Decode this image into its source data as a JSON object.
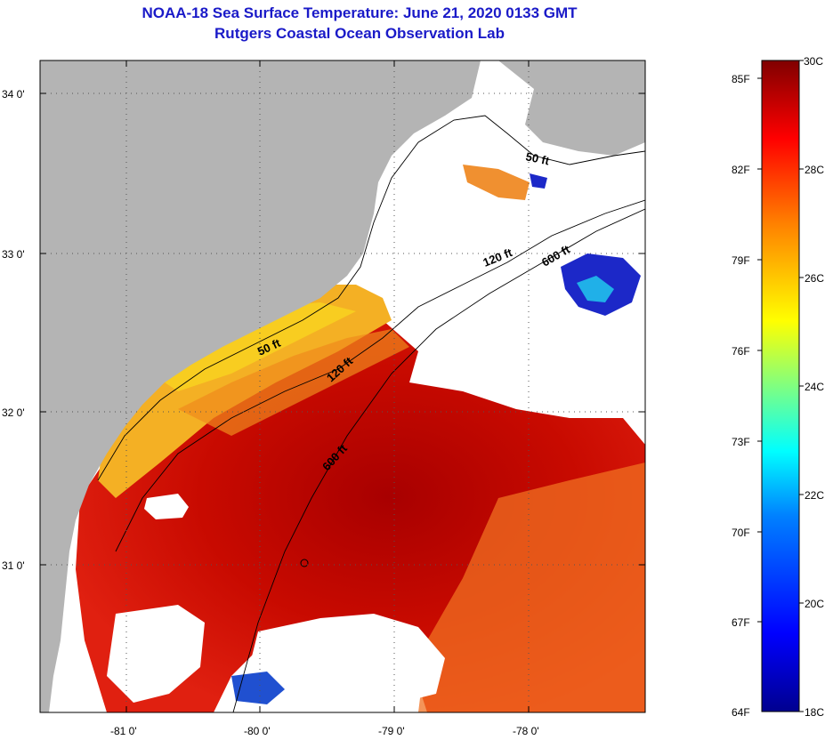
{
  "header": {
    "title": "NOAA-18 Sea Surface Temperature:  June 21, 2020 0133 GMT",
    "subtitle": "Rutgers Coastal Ocean Observation Lab"
  },
  "map": {
    "lat_labels": [
      "34 0'",
      "33 0'",
      "32 0'",
      "31 0'"
    ],
    "lon_labels": [
      "-81 0'",
      "-80 0'",
      "-79 0'",
      "-78 0'"
    ],
    "depth_labels": [
      "50 ft",
      "120 ft",
      "600 ft",
      "50 ft",
      "120 ft",
      "600 ft"
    ],
    "colors": {
      "land": "#b4b4b4",
      "cloud": "#ffffff",
      "warm_dark": "#a80000",
      "warm": "#e02010",
      "orange": "#f07818",
      "yellow": "#f8d020",
      "cold": "#1c28c8"
    }
  },
  "colorbar": {
    "fahrenheit": [
      "85F",
      "82F",
      "79F",
      "76F",
      "73F",
      "70F",
      "67F",
      "64F"
    ],
    "celsius": [
      "30C",
      "28C",
      "26C",
      "24C",
      "22C",
      "20C",
      "18C"
    ],
    "colors": [
      "#00008f",
      "#0000ff",
      "#0080ff",
      "#00ffff",
      "#80ff80",
      "#ffff00",
      "#ff8000",
      "#ff0000",
      "#800000"
    ]
  }
}
